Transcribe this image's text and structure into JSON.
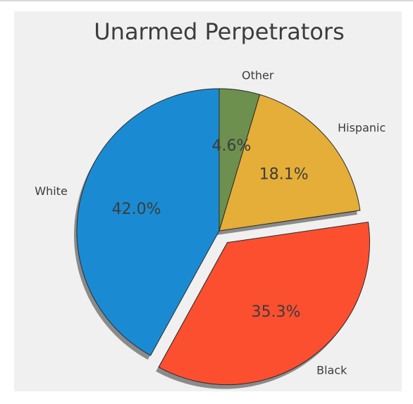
{
  "chart_data": {
    "type": "pie",
    "title": "Unarmed Perpetrators",
    "categories": [
      "White",
      "Black",
      "Hispanic",
      "Other"
    ],
    "values": [
      42.0,
      35.3,
      18.1,
      4.6
    ],
    "value_labels": [
      "42.0%",
      "35.3%",
      "18.1%",
      "4.6%"
    ],
    "colors": [
      "#1a8bd3",
      "#fc4f30",
      "#e5ae38",
      "#6d904f"
    ],
    "explode": [
      0,
      0.1,
      0,
      0
    ],
    "start_angle_deg": 90,
    "shadow": true,
    "edge_color": "#2a2a2a",
    "background": "#f0f0f0",
    "legend": "none"
  }
}
